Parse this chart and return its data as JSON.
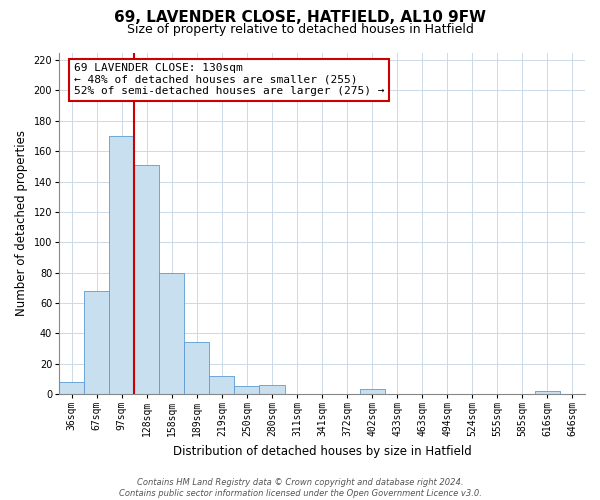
{
  "title": "69, LAVENDER CLOSE, HATFIELD, AL10 9FW",
  "subtitle": "Size of property relative to detached houses in Hatfield",
  "xlabel": "Distribution of detached houses by size in Hatfield",
  "ylabel": "Number of detached properties",
  "bar_labels": [
    "36sqm",
    "67sqm",
    "97sqm",
    "128sqm",
    "158sqm",
    "189sqm",
    "219sqm",
    "250sqm",
    "280sqm",
    "311sqm",
    "341sqm",
    "372sqm",
    "402sqm",
    "433sqm",
    "463sqm",
    "494sqm",
    "524sqm",
    "555sqm",
    "585sqm",
    "616sqm",
    "646sqm"
  ],
  "bar_values": [
    8,
    68,
    170,
    151,
    80,
    34,
    12,
    5,
    6,
    0,
    0,
    0,
    3,
    0,
    0,
    0,
    0,
    0,
    0,
    2,
    0
  ],
  "bar_color": "#c8dff0",
  "bar_edge_color": "#5b9bd5",
  "vline_color": "#cc0000",
  "annotation_text": "69 LAVENDER CLOSE: 130sqm\n← 48% of detached houses are smaller (255)\n52% of semi-detached houses are larger (275) →",
  "annotation_box_color": "#ffffff",
  "annotation_box_edge": "#cc0000",
  "ylim": [
    0,
    225
  ],
  "yticks": [
    0,
    20,
    40,
    60,
    80,
    100,
    120,
    140,
    160,
    180,
    200,
    220
  ],
  "footer_line1": "Contains HM Land Registry data © Crown copyright and database right 2024.",
  "footer_line2": "Contains public sector information licensed under the Open Government Licence v3.0.",
  "bg_color": "#ffffff",
  "grid_color": "#ccd9e8",
  "title_fontsize": 11,
  "subtitle_fontsize": 9,
  "axis_label_fontsize": 8.5,
  "tick_fontsize": 7,
  "annotation_fontsize": 8,
  "footer_fontsize": 6
}
